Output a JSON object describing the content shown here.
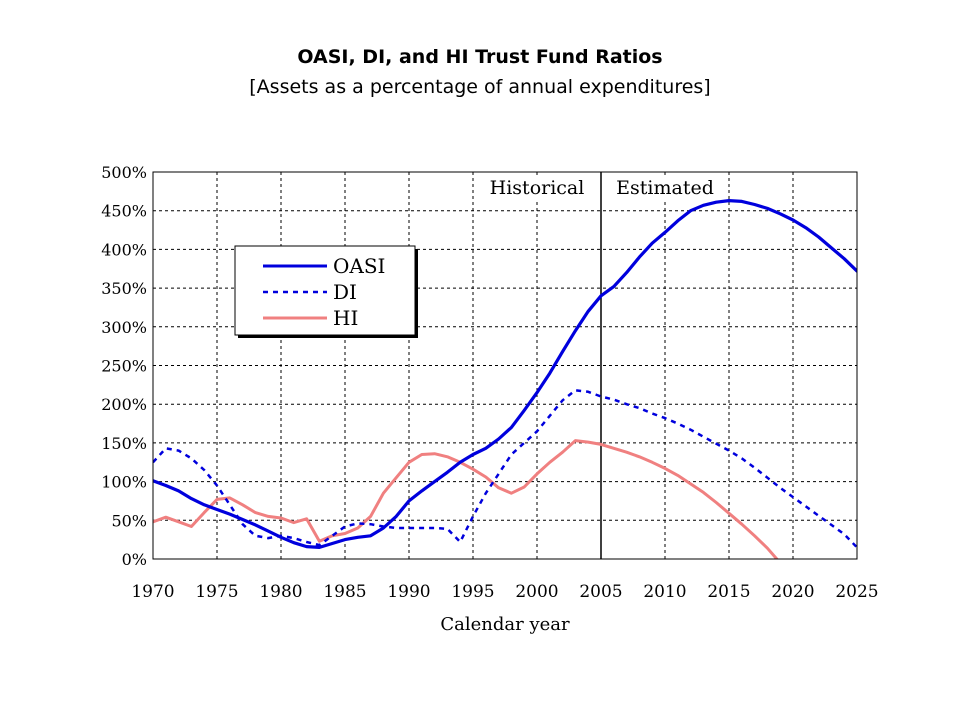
{
  "chart_data": {
    "type": "line",
    "title": "OASI, DI, and HI Trust Fund Ratios",
    "subtitle": "[Assets as a percentage of annual expenditures]",
    "xlabel": "Calendar year",
    "ylabel": "",
    "xlim": [
      1970,
      2025
    ],
    "ylim": [
      0,
      500
    ],
    "x_ticks": [
      1970,
      1975,
      1980,
      1985,
      1990,
      1995,
      2000,
      2005,
      2010,
      2015,
      2020,
      2025
    ],
    "y_ticks": [
      0,
      50,
      100,
      150,
      200,
      250,
      300,
      350,
      400,
      450,
      500
    ],
    "y_tick_suffix": "%",
    "grid": true,
    "legend": "upper-left",
    "annotations": [
      {
        "text": "Historical",
        "x": 2000
      },
      {
        "text": "Estimated",
        "x": 2010
      }
    ],
    "divider_x": 2005,
    "series": [
      {
        "name": "OASI",
        "color": "#0000dd",
        "style": "solid",
        "points": [
          [
            1970,
            101
          ],
          [
            1971,
            95
          ],
          [
            1972,
            88
          ],
          [
            1973,
            78
          ],
          [
            1974,
            70
          ],
          [
            1975,
            64
          ],
          [
            1976,
            58
          ],
          [
            1977,
            51
          ],
          [
            1978,
            44
          ],
          [
            1979,
            36
          ],
          [
            1980,
            28
          ],
          [
            1981,
            21
          ],
          [
            1982,
            16
          ],
          [
            1983,
            15
          ],
          [
            1984,
            20
          ],
          [
            1985,
            25
          ],
          [
            1986,
            28
          ],
          [
            1987,
            30
          ],
          [
            1988,
            40
          ],
          [
            1989,
            55
          ],
          [
            1990,
            75
          ],
          [
            1991,
            88
          ],
          [
            1992,
            100
          ],
          [
            1993,
            112
          ],
          [
            1994,
            125
          ],
          [
            1995,
            135
          ],
          [
            1996,
            143
          ],
          [
            1997,
            155
          ],
          [
            1998,
            170
          ],
          [
            1999,
            192
          ],
          [
            2000,
            215
          ],
          [
            2001,
            240
          ],
          [
            2002,
            268
          ],
          [
            2003,
            295
          ],
          [
            2004,
            320
          ],
          [
            2005,
            340
          ],
          [
            2006,
            352
          ],
          [
            2007,
            370
          ],
          [
            2008,
            390
          ],
          [
            2009,
            408
          ],
          [
            2010,
            422
          ],
          [
            2011,
            437
          ],
          [
            2012,
            450
          ],
          [
            2013,
            457
          ],
          [
            2014,
            461
          ],
          [
            2015,
            463
          ],
          [
            2016,
            462
          ],
          [
            2017,
            458
          ],
          [
            2018,
            453
          ],
          [
            2019,
            446
          ],
          [
            2020,
            438
          ],
          [
            2021,
            428
          ],
          [
            2022,
            416
          ],
          [
            2023,
            402
          ],
          [
            2024,
            388
          ],
          [
            2025,
            372
          ]
        ]
      },
      {
        "name": "DI",
        "color": "#0000dd",
        "style": "dashed",
        "points": [
          [
            1970,
            125
          ],
          [
            1971,
            143
          ],
          [
            1972,
            140
          ],
          [
            1973,
            130
          ],
          [
            1974,
            115
          ],
          [
            1975,
            95
          ],
          [
            1976,
            70
          ],
          [
            1977,
            45
          ],
          [
            1978,
            30
          ],
          [
            1979,
            27
          ],
          [
            1980,
            30
          ],
          [
            1981,
            27
          ],
          [
            1982,
            22
          ],
          [
            1983,
            18
          ],
          [
            1984,
            30
          ],
          [
            1985,
            42
          ],
          [
            1986,
            46
          ],
          [
            1987,
            45
          ],
          [
            1988,
            42
          ],
          [
            1989,
            40
          ],
          [
            1990,
            40
          ],
          [
            1991,
            40
          ],
          [
            1992,
            40
          ],
          [
            1993,
            39
          ],
          [
            1994,
            22
          ],
          [
            1995,
            55
          ],
          [
            1996,
            85
          ],
          [
            1997,
            110
          ],
          [
            1998,
            135
          ],
          [
            1999,
            150
          ],
          [
            2000,
            165
          ],
          [
            2001,
            185
          ],
          [
            2002,
            205
          ],
          [
            2003,
            218
          ],
          [
            2004,
            216
          ],
          [
            2005,
            210
          ],
          [
            2006,
            206
          ],
          [
            2007,
            200
          ],
          [
            2008,
            195
          ],
          [
            2009,
            188
          ],
          [
            2010,
            182
          ],
          [
            2011,
            175
          ],
          [
            2012,
            167
          ],
          [
            2013,
            158
          ],
          [
            2014,
            149
          ],
          [
            2015,
            140
          ],
          [
            2016,
            130
          ],
          [
            2017,
            118
          ],
          [
            2018,
            105
          ],
          [
            2019,
            92
          ],
          [
            2020,
            80
          ],
          [
            2021,
            68
          ],
          [
            2022,
            56
          ],
          [
            2023,
            44
          ],
          [
            2024,
            32
          ],
          [
            2025,
            15
          ]
        ]
      },
      {
        "name": "HI",
        "color": "#f08080",
        "style": "solid",
        "points": [
          [
            1970,
            48
          ],
          [
            1971,
            54
          ],
          [
            1972,
            48
          ],
          [
            1973,
            42
          ],
          [
            1974,
            60
          ],
          [
            1975,
            77
          ],
          [
            1976,
            79
          ],
          [
            1977,
            70
          ],
          [
            1978,
            60
          ],
          [
            1979,
            55
          ],
          [
            1980,
            53
          ],
          [
            1981,
            47
          ],
          [
            1982,
            52
          ],
          [
            1983,
            23
          ],
          [
            1984,
            30
          ],
          [
            1985,
            33
          ],
          [
            1986,
            40
          ],
          [
            1987,
            55
          ],
          [
            1988,
            85
          ],
          [
            1989,
            105
          ],
          [
            1990,
            125
          ],
          [
            1991,
            135
          ],
          [
            1992,
            136
          ],
          [
            1993,
            132
          ],
          [
            1994,
            125
          ],
          [
            1995,
            116
          ],
          [
            1996,
            106
          ],
          [
            1997,
            92
          ],
          [
            1998,
            85
          ],
          [
            1999,
            93
          ],
          [
            2000,
            110
          ],
          [
            2001,
            125
          ],
          [
            2002,
            138
          ],
          [
            2003,
            153
          ],
          [
            2004,
            151
          ],
          [
            2005,
            148
          ],
          [
            2006,
            143
          ],
          [
            2007,
            138
          ],
          [
            2008,
            132
          ],
          [
            2009,
            125
          ],
          [
            2010,
            117
          ],
          [
            2011,
            108
          ],
          [
            2012,
            97
          ],
          [
            2013,
            86
          ],
          [
            2014,
            73
          ],
          [
            2015,
            59
          ],
          [
            2016,
            45
          ],
          [
            2017,
            30
          ],
          [
            2018,
            14
          ],
          [
            2019,
            -5
          ]
        ]
      }
    ]
  }
}
